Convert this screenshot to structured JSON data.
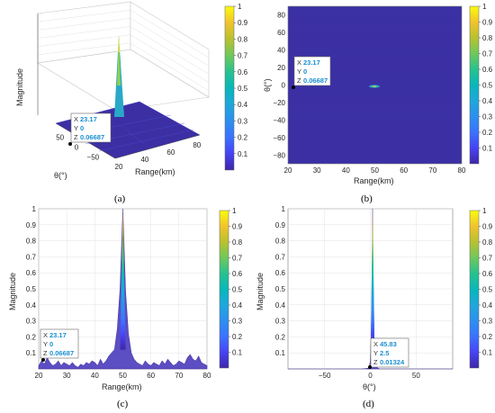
{
  "colorbar_ticks": [
    "1",
    "0.9",
    "0.8",
    "0.7",
    "0.6",
    "0.5",
    "0.4",
    "0.3",
    "0.2",
    "0.1"
  ],
  "colormap": [
    "#3e26a8",
    "#4743f3",
    "#3b72fe",
    "#2d8ff0",
    "#1fa7db",
    "#08b7bb",
    "#27c28e",
    "#6fc85c",
    "#b8c130",
    "#f1c32d",
    "#f9fb0e"
  ],
  "background_color": "#3b2fa3",
  "chart_data": [
    {
      "type": "surface",
      "panel": "(a)",
      "zlabel": "Magnitude",
      "xlabel": "Range(km)",
      "ylabel": "θ(°)",
      "x_ticks": [
        "20",
        "40",
        "60",
        "80"
      ],
      "y_ticks": [
        "50",
        "0",
        "−50"
      ],
      "peak": {
        "x": 50,
        "y": 2.5,
        "z": 1
      },
      "datatip": [
        [
          "X",
          "23.17"
        ],
        [
          "Y",
          "0"
        ],
        [
          "Z",
          "0.06687"
        ]
      ]
    },
    {
      "type": "heatmap",
      "panel": "(b)",
      "xlabel": "Range(km)",
      "ylabel": "θ(°)",
      "x_ticks": [
        "20",
        "30",
        "40",
        "50",
        "60",
        "70",
        "80"
      ],
      "y_ticks": [
        "80",
        "60",
        "40",
        "20",
        "0",
        "−20",
        "−40",
        "−60",
        "−80"
      ],
      "xlim": [
        20,
        80
      ],
      "ylim": [
        -90,
        90
      ],
      "hotspot": {
        "x": 50,
        "y": 2.5
      },
      "datatip": [
        [
          "X",
          "23.17"
        ],
        [
          "Y",
          "0"
        ],
        [
          "Z",
          "0.06687"
        ]
      ]
    },
    {
      "type": "line",
      "panel": "(c)",
      "xlabel": "Range(km)",
      "ylabel": "Magnitude",
      "x_ticks": [
        "20",
        "30",
        "40",
        "50",
        "60",
        "70",
        "80"
      ],
      "y_ticks": [
        "1",
        "0.9",
        "0.8",
        "0.7",
        "0.6",
        "0.5",
        "0.4",
        "0.3",
        "0.2",
        "0.1"
      ],
      "xlim": [
        20,
        80
      ],
      "ylim": [
        0,
        1
      ],
      "x": [
        20,
        21,
        22,
        23,
        24,
        25,
        26,
        27,
        28,
        29,
        30,
        31,
        32,
        33,
        34,
        35,
        36,
        37,
        38,
        39,
        40,
        41,
        42,
        43,
        44,
        45,
        46,
        47,
        48,
        49,
        50,
        51,
        52,
        53,
        54,
        55,
        56,
        57,
        58,
        59,
        60,
        61,
        62,
        63,
        64,
        65,
        66,
        67,
        68,
        69,
        70,
        71,
        72,
        73,
        74,
        75,
        76,
        77,
        78,
        79,
        80
      ],
      "y": [
        0.02,
        0.05,
        0.03,
        0.07,
        0.04,
        0.02,
        0.03,
        0.05,
        0.02,
        0.04,
        0.03,
        0.02,
        0.04,
        0.02,
        0.01,
        0.03,
        0.02,
        0.04,
        0.03,
        0.05,
        0.04,
        0.02,
        0.06,
        0.03,
        0.05,
        0.08,
        0.1,
        0.12,
        0.25,
        0.5,
        1.0,
        0.48,
        0.22,
        0.1,
        0.06,
        0.04,
        0.03,
        0.02,
        0.05,
        0.03,
        0.02,
        0.04,
        0.03,
        0.02,
        0.05,
        0.03,
        0.06,
        0.04,
        0.02,
        0.03,
        0.05,
        0.04,
        0.03,
        0.07,
        0.09,
        0.06,
        0.05,
        0.08,
        0.04,
        0.03,
        0.02
      ],
      "datatip": [
        [
          "X",
          "23.17"
        ],
        [
          "Y",
          "0"
        ],
        [
          "Z",
          "0.06687"
        ]
      ]
    },
    {
      "type": "line",
      "panel": "(d)",
      "xlabel": "θ(°)",
      "ylabel": "Magnitude",
      "x_ticks": [
        "−50",
        "0",
        "50"
      ],
      "y_ticks": [
        "1",
        "0.9",
        "0.8",
        "0.7",
        "0.6",
        "0.5",
        "0.4",
        "0.3",
        "0.2",
        "0.1"
      ],
      "xlim": [
        -90,
        90
      ],
      "ylim": [
        0,
        1
      ],
      "x": [
        -90,
        -10,
        -5,
        -2,
        -1,
        0,
        1,
        2,
        2.5,
        3,
        4,
        5,
        7,
        10,
        90
      ],
      "y": [
        0,
        0,
        0.002,
        0.005,
        0.015,
        0.05,
        0.2,
        0.6,
        1.0,
        0.6,
        0.2,
        0.05,
        0.01,
        0,
        0
      ],
      "datatip": [
        [
          "X",
          "45.83"
        ],
        [
          "Y",
          "2.5"
        ],
        [
          "Z",
          "0.01324"
        ]
      ]
    }
  ]
}
